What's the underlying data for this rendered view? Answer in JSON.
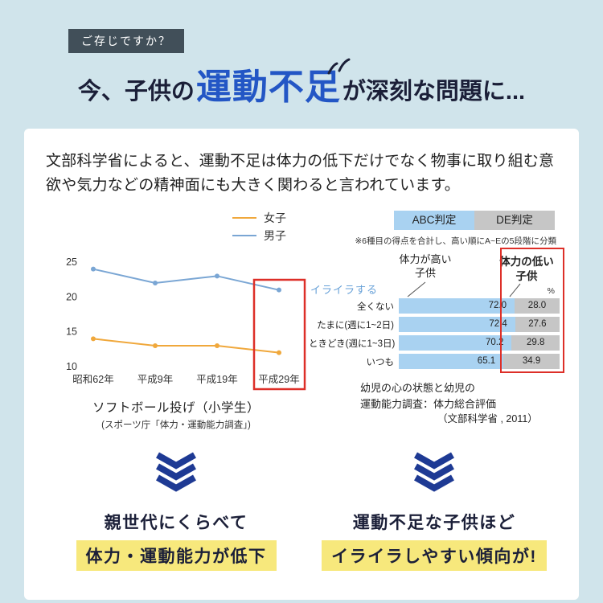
{
  "colors": {
    "bg": "#d0e4eb",
    "badge_bg": "#414f59",
    "title_navy": "#1b1f38",
    "accent_blue": "#2356c5",
    "accent_red": "#dd2f28",
    "girls_orange": "#f0a83c",
    "boys_blue": "#7aa6d4",
    "bar_blue": "#a9d2f1",
    "bar_gray": "#c6c6c6",
    "chevron_navy": "#1e3a94",
    "highlight_yellow": "#f7e87c",
    "group_blue": "#68a1d8"
  },
  "header": {
    "badge": "ご存じですか？",
    "title_prefix": "今、子供の",
    "title_highlight": "運動不足",
    "title_suffix": "が深刻な問題に..."
  },
  "intro_text": "文部科学省によると、運動不足は体力の低下だけでなく物事に取り組む意欲や気力などの精神面にも大きく関わると言われています。",
  "chart_data": [
    {
      "type": "line",
      "title": "ソフトボール投げ（小学生）",
      "source": "(スポーツ庁「体力・運動能力調査」)",
      "categories": [
        "昭和62年",
        "平成9年",
        "平成19年",
        "平成29年"
      ],
      "series": [
        {
          "name": "女子",
          "color_key": "girls_orange",
          "values": [
            14,
            13,
            13,
            12
          ]
        },
        {
          "name": "男子",
          "color_key": "boys_blue",
          "values": [
            24,
            22,
            23,
            21
          ]
        }
      ],
      "ylim": [
        10,
        25
      ],
      "yticks": [
        25,
        20,
        15,
        10
      ],
      "grid": false,
      "legend_position": "top-right",
      "highlight_category": "平成29年"
    },
    {
      "type": "bar",
      "subtype": "horizontal-stacked-100pct",
      "legend": [
        {
          "label": "ABC判定",
          "color_key": "bar_blue"
        },
        {
          "label": "DE判定",
          "color_key": "bar_gray"
        }
      ],
      "note": "※6種目の得点を合計し、高い順にA~Eの5段階に分類",
      "col_headers": [
        {
          "label": "体力が高い\n子供",
          "highlighted": false
        },
        {
          "label": "体力の低い\n子供",
          "highlighted": true
        }
      ],
      "group_label": "イライラする",
      "unit": "%",
      "categories": [
        "全くない",
        "たまに(週に1~2日)",
        "ときどき(週に1~3日)",
        "いつも"
      ],
      "series": [
        {
          "name": "ABC判定",
          "color_key": "bar_blue",
          "values": [
            72.0,
            72.4,
            70.2,
            65.1
          ]
        },
        {
          "name": "DE判定",
          "color_key": "bar_gray",
          "values": [
            28.0,
            27.6,
            29.8,
            34.9
          ]
        }
      ],
      "source_lines": [
        "幼児の心の状態と幼児の",
        "運動能力調査：体力総合評価",
        "（文部科学省 , 2011）"
      ]
    }
  ],
  "conclusions": [
    {
      "line1": "親世代にくらべて",
      "line2": "体力・運動能力が低下"
    },
    {
      "line1": "運動不足な子供ほど",
      "line2": "イライラしやすい傾向が!"
    }
  ]
}
